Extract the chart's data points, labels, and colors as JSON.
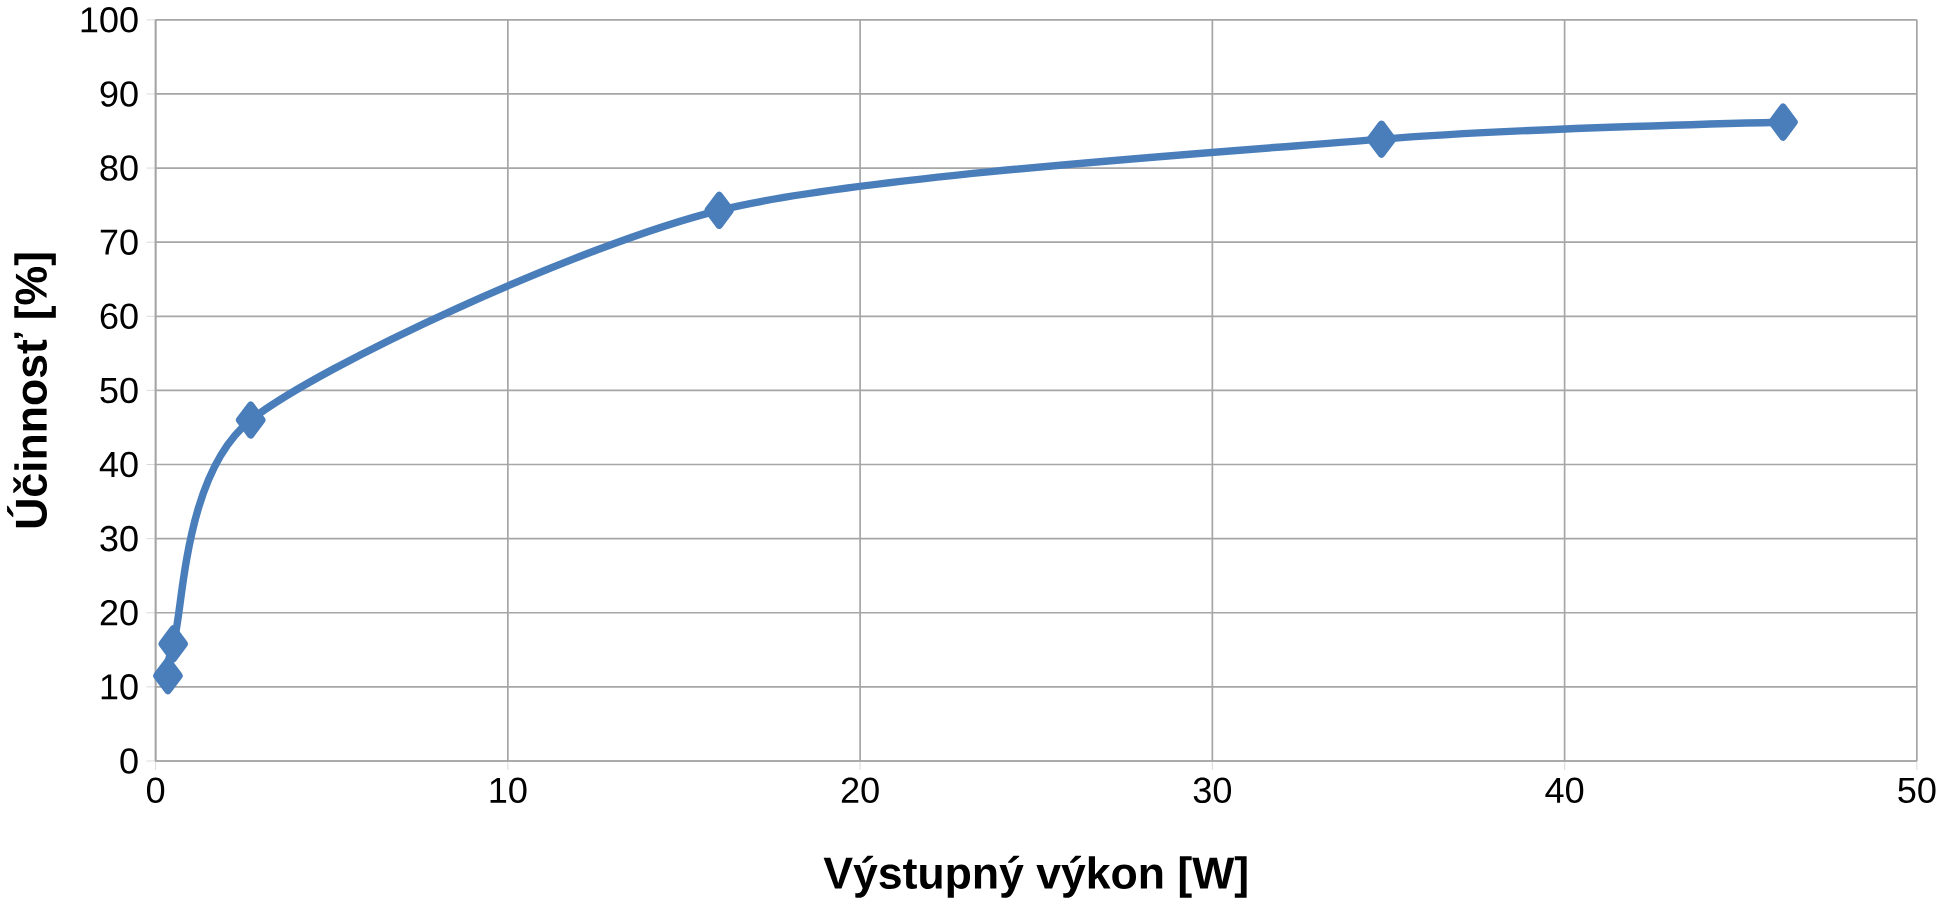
{
  "chart_data": {
    "type": "line",
    "xlabel": "Výstupný výkon [W]",
    "ylabel": "Účinnosť [%]",
    "x": [
      0.35,
      0.5,
      2.7,
      16.0,
      34.8,
      46.2
    ],
    "series": [
      {
        "color": "#4a7ebb",
        "values": [
          11.5,
          15.8,
          46.0,
          74.3,
          83.9,
          86.2
        ]
      }
    ],
    "xlim": [
      0,
      50
    ],
    "xticks": [
      0,
      10,
      20,
      30,
      40,
      50
    ],
    "ylim": [
      0,
      100
    ],
    "yticks": [
      0,
      10,
      20,
      30,
      40,
      50,
      60,
      70,
      80,
      90,
      100
    ],
    "grid": true,
    "marker": "diamond",
    "line_style": "solid"
  }
}
